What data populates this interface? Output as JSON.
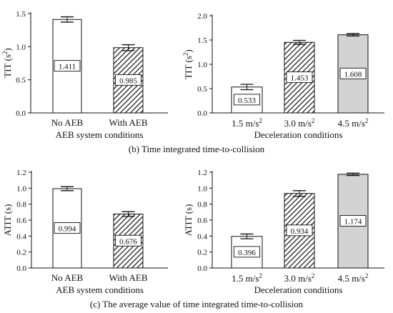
{
  "captions": {
    "b": "(b) Time integrated time-to-collision",
    "c": "(c) The average value of time integrated time-to-collision"
  },
  "colors": {
    "bar_plain": "#ffffff",
    "bar_gray": "#d3d3d3",
    "stroke": "#111111"
  },
  "chart_data": [
    {
      "type": "bar",
      "title": "",
      "xlabel": "AEB system conditions",
      "ylabel_main": "TIT",
      "ylabel_sup": "2",
      "ylabel_pre": "(s",
      "ylabel_post": ")",
      "ylim": [
        0,
        1.5
      ],
      "yticks": [
        "0.0",
        "0.5",
        "1.0",
        "1.5"
      ],
      "categories": [
        {
          "label": "No AEB",
          "sup": ""
        },
        {
          "label": "With AEB",
          "sup": ""
        }
      ],
      "values": [
        1.411,
        0.985
      ],
      "error": [
        0.04,
        0.045
      ],
      "labels": [
        "1.411",
        "0.985"
      ],
      "fills": [
        "plain",
        "hatch"
      ]
    },
    {
      "type": "bar",
      "title": "",
      "xlabel": "Deceleration conditions",
      "ylabel_main": "TIT",
      "ylabel_sup": "2",
      "ylabel_pre": "(s",
      "ylabel_post": ")",
      "ylim": [
        0,
        2.0
      ],
      "yticks": [
        "0.0",
        "0.5",
        "1.0",
        "1.5",
        "2.0"
      ],
      "categories": [
        {
          "label": "1.5 m/s",
          "sup": "2"
        },
        {
          "label": "3.0 m/s",
          "sup": "2"
        },
        {
          "label": "4.5 m/s",
          "sup": "2"
        }
      ],
      "values": [
        0.533,
        1.453,
        1.608
      ],
      "error": [
        0.055,
        0.04,
        0.025
      ],
      "labels": [
        "0.533",
        "1.453",
        "1.608"
      ],
      "fills": [
        "plain",
        "hatch",
        "gray"
      ]
    },
    {
      "type": "bar",
      "title": "",
      "xlabel": "AEB system conditions",
      "ylabel_main": "ATIT",
      "ylabel_sup": "",
      "ylabel_pre": "(s",
      "ylabel_post": ")",
      "ylim": [
        0,
        1.2
      ],
      "yticks": [
        "0.0",
        "0.2",
        "0.4",
        "0.6",
        "0.8",
        "1.0",
        "1.2"
      ],
      "categories": [
        {
          "label": "No AEB",
          "sup": ""
        },
        {
          "label": "With AEB",
          "sup": ""
        }
      ],
      "values": [
        0.994,
        0.676
      ],
      "error": [
        0.025,
        0.03
      ],
      "labels": [
        "0.994",
        "0.676"
      ],
      "fills": [
        "plain",
        "hatch"
      ]
    },
    {
      "type": "bar",
      "title": "",
      "xlabel": "Deceleration conditions",
      "ylabel_main": "ATIT",
      "ylabel_sup": "",
      "ylabel_pre": "(s",
      "ylabel_post": ")",
      "ylim": [
        0,
        1.2
      ],
      "yticks": [
        "0.0",
        "0.2",
        "0.4",
        "0.6",
        "0.8",
        "1.0",
        "1.2"
      ],
      "categories": [
        {
          "label": "1.5 m/s",
          "sup": "2"
        },
        {
          "label": "3.0 m/s",
          "sup": "2"
        },
        {
          "label": "4.5 m/s",
          "sup": "2"
        }
      ],
      "values": [
        0.396,
        0.934,
        1.174
      ],
      "error": [
        0.03,
        0.035,
        0.015
      ],
      "labels": [
        "0.396",
        "0.934",
        "1.174"
      ],
      "fills": [
        "plain",
        "hatch",
        "gray"
      ]
    }
  ]
}
